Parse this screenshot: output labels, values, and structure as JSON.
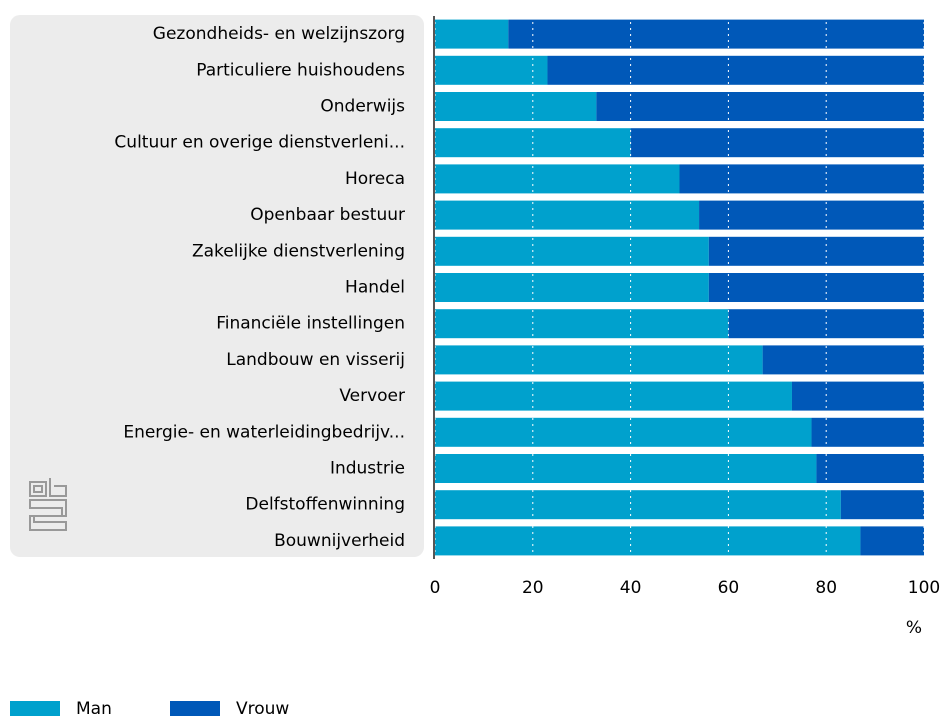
{
  "chart_data": {
    "type": "stacked_barh",
    "categories": [
      "Gezondheids- en welzijnszorg",
      "Particuliere huishoudens",
      "Onderwijs",
      "Cultuur en overige dienstverleni...",
      "Horeca",
      "Openbaar bestuur",
      "Zakelijke dienstverlening",
      "Handel",
      "Financiële instellingen",
      "Landbouw en visserij",
      "Vervoer",
      "Energie- en waterleidingbedrijv...",
      "Industrie",
      "Delfstoffenwinning",
      "Bouwnijverheid"
    ],
    "series": [
      {
        "name": "Man",
        "color": "#00a1cd",
        "values": [
          15,
          23,
          33,
          40,
          50,
          54,
          56,
          56,
          60,
          67,
          73,
          77,
          78,
          83,
          87
        ]
      },
      {
        "name": "Vrouw",
        "color": "#0058b8",
        "values": [
          85,
          77,
          67,
          60,
          50,
          46,
          44,
          44,
          40,
          33,
          27,
          23,
          22,
          17,
          13
        ]
      }
    ],
    "x_label": "%",
    "xlim": [
      0,
      100
    ],
    "xticks": [
      0,
      20,
      40,
      60,
      80,
      100
    ],
    "grid": true,
    "legend": "bottom-left"
  }
}
